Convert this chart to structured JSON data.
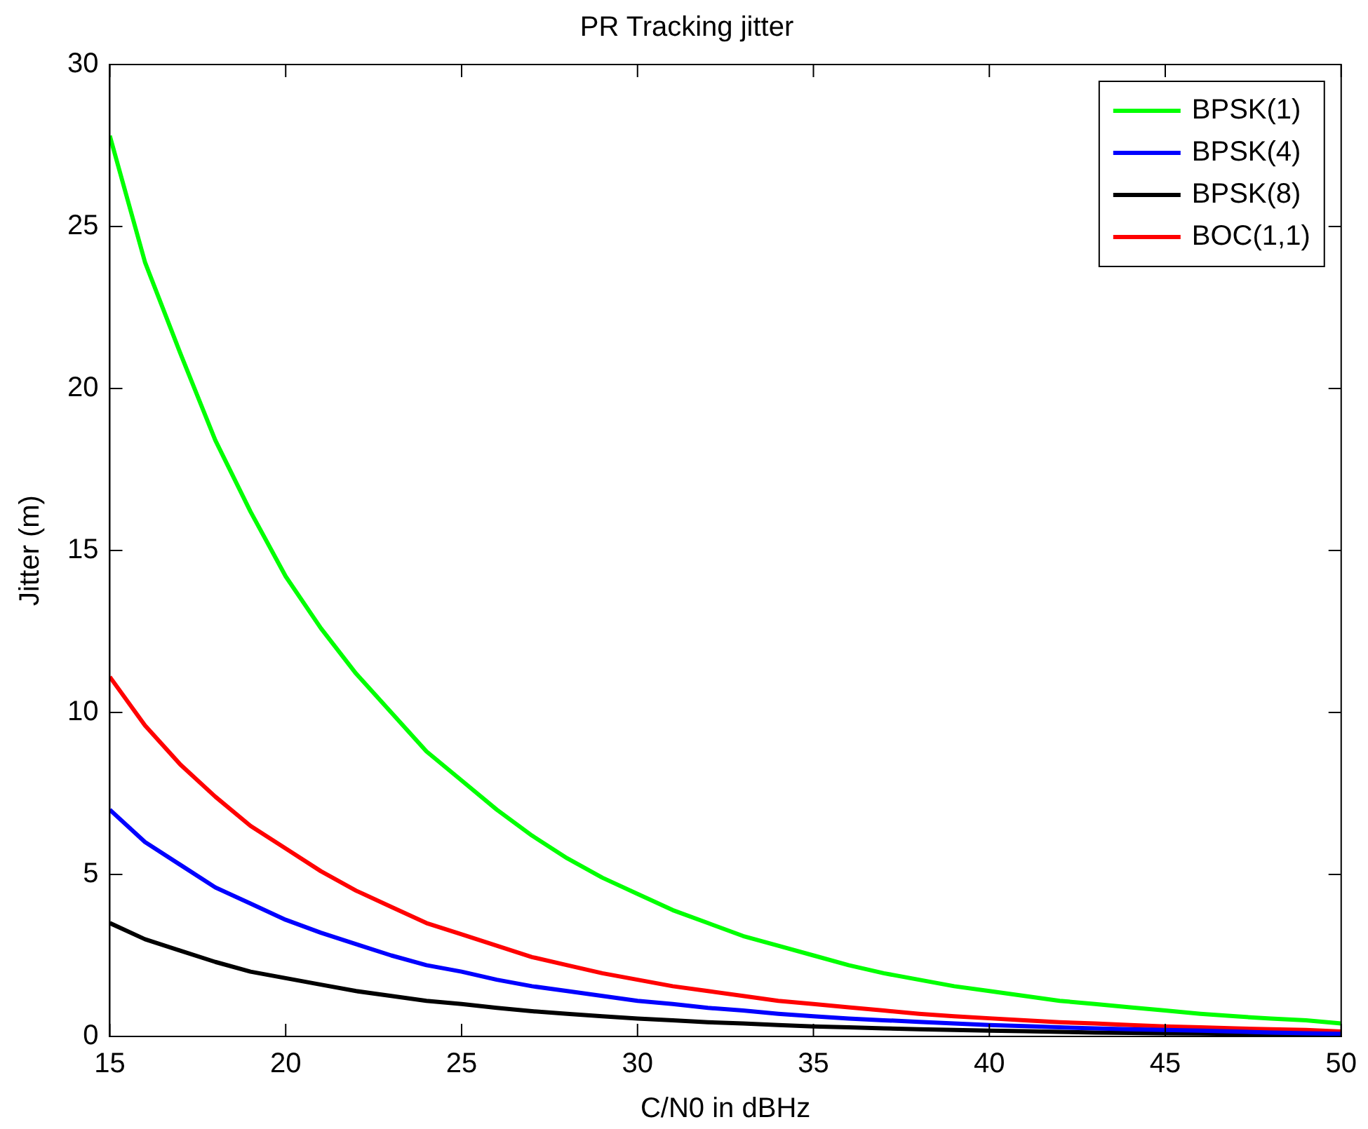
{
  "chart_data": {
    "type": "line",
    "title": "PR Tracking jitter",
    "xlabel": "C/N0 in dBHz",
    "ylabel": "Jitter (m)",
    "x": [
      15,
      16,
      17,
      18,
      19,
      20,
      21,
      22,
      23,
      24,
      25,
      26,
      27,
      28,
      29,
      30,
      31,
      32,
      33,
      34,
      35,
      36,
      37,
      38,
      39,
      40,
      41,
      42,
      43,
      44,
      45,
      46,
      47,
      48,
      49,
      50
    ],
    "series": [
      {
        "name": "BPSK(1)",
        "color": "#00ff00",
        "values": [
          27.8,
          23.9,
          21.1,
          18.4,
          16.2,
          14.2,
          12.6,
          11.2,
          10.0,
          8.8,
          7.9,
          7.0,
          6.2,
          5.5,
          4.9,
          4.4,
          3.9,
          3.5,
          3.1,
          2.8,
          2.5,
          2.2,
          1.95,
          1.75,
          1.55,
          1.4,
          1.25,
          1.1,
          1.0,
          0.9,
          0.8,
          0.7,
          0.62,
          0.55,
          0.5,
          0.4
        ]
      },
      {
        "name": "BPSK(4)",
        "color": "#0000ff",
        "values": [
          7.0,
          6.0,
          5.3,
          4.6,
          4.1,
          3.6,
          3.2,
          2.85,
          2.5,
          2.2,
          2.0,
          1.75,
          1.55,
          1.4,
          1.25,
          1.1,
          1.0,
          0.88,
          0.8,
          0.7,
          0.62,
          0.55,
          0.5,
          0.45,
          0.4,
          0.35,
          0.32,
          0.28,
          0.25,
          0.22,
          0.2,
          0.18,
          0.15,
          0.12,
          0.1,
          0.08
        ]
      },
      {
        "name": "BPSK(8)",
        "color": "#000000",
        "values": [
          3.5,
          3.0,
          2.65,
          2.3,
          2.0,
          1.8,
          1.6,
          1.4,
          1.25,
          1.1,
          1.0,
          0.88,
          0.78,
          0.7,
          0.62,
          0.55,
          0.5,
          0.44,
          0.4,
          0.35,
          0.31,
          0.28,
          0.25,
          0.22,
          0.2,
          0.18,
          0.16,
          0.14,
          0.12,
          0.11,
          0.1,
          0.09,
          0.08,
          0.07,
          0.06,
          0.05
        ]
      },
      {
        "name": "BOC(1,1)",
        "color": "#ff0000",
        "values": [
          11.1,
          9.6,
          8.4,
          7.4,
          6.5,
          5.8,
          5.1,
          4.5,
          4.0,
          3.5,
          3.15,
          2.8,
          2.45,
          2.2,
          1.95,
          1.75,
          1.55,
          1.4,
          1.25,
          1.1,
          1.0,
          0.9,
          0.8,
          0.7,
          0.62,
          0.56,
          0.5,
          0.44,
          0.4,
          0.35,
          0.31,
          0.28,
          0.25,
          0.22,
          0.2,
          0.15
        ]
      }
    ],
    "xlim": [
      15,
      50
    ],
    "xticks": [
      15,
      20,
      25,
      30,
      35,
      40,
      45,
      50
    ],
    "ylim": [
      0,
      30
    ],
    "yticks": [
      0,
      5,
      10,
      15,
      20,
      25,
      30
    ],
    "grid": false,
    "legend": "top right"
  }
}
